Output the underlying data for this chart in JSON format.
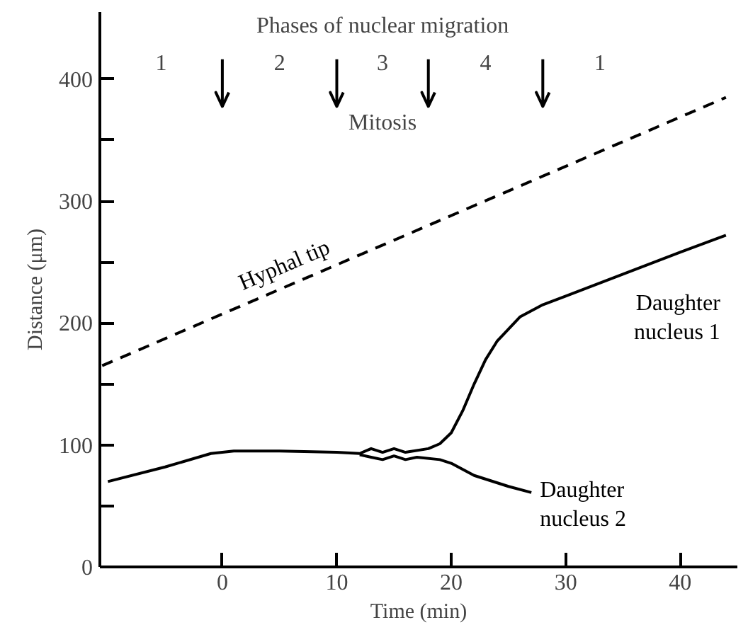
{
  "chart_data": {
    "type": "line",
    "xlabel": "Time (min)",
    "ylabel": "Distance (μm)",
    "xlim": [
      -10.7,
      45
    ],
    "ylim": [
      0,
      455
    ],
    "xticks": [
      0,
      10,
      20,
      30,
      40
    ],
    "yticks": [
      0,
      {
        "value": 50,
        "label": null
      },
      100,
      {
        "value": 150,
        "label": null
      },
      200,
      {
        "value": 250,
        "label": null
      },
      300,
      {
        "value": 350,
        "label": null
      },
      400
    ],
    "grid": false,
    "marker": "none",
    "series": [
      {
        "name": "Hyphal tip",
        "color": "#000000",
        "line_style": "dashed",
        "x": [
          -10.5,
          44
        ],
        "values": [
          165,
          385
        ]
      },
      {
        "name": "Daughter nucleus 1",
        "color": "#000000",
        "line_style": "solid",
        "x": [
          -10,
          -5,
          -1,
          1,
          5,
          10,
          12,
          13,
          14,
          15,
          16,
          18,
          19,
          20,
          21,
          22,
          23,
          24,
          26,
          28,
          30,
          35,
          40,
          44
        ],
        "values": [
          70,
          82,
          93,
          95,
          95,
          94,
          93,
          97,
          94,
          97,
          94,
          97,
          101,
          110,
          128,
          150,
          170,
          185,
          205,
          215,
          222,
          240,
          258,
          272
        ]
      },
      {
        "name": "Daughter nucleus 2",
        "color": "#000000",
        "line_style": "solid",
        "x": [
          12,
          13,
          14,
          15,
          16,
          17,
          19,
          20,
          22,
          25,
          27
        ],
        "values": [
          92,
          90,
          88,
          91,
          88,
          90,
          88,
          85,
          75,
          66,
          61
        ]
      }
    ],
    "ref_lines": [
      {
        "axis": "x",
        "value": 0
      },
      {
        "axis": "x",
        "value": 10
      },
      {
        "axis": "x",
        "value": 18
      },
      {
        "axis": "x",
        "value": 28
      }
    ],
    "annotations": [
      "Phases of nuclear migration",
      "1",
      "2",
      "3",
      "4",
      "1",
      "Mitosis"
    ]
  }
}
